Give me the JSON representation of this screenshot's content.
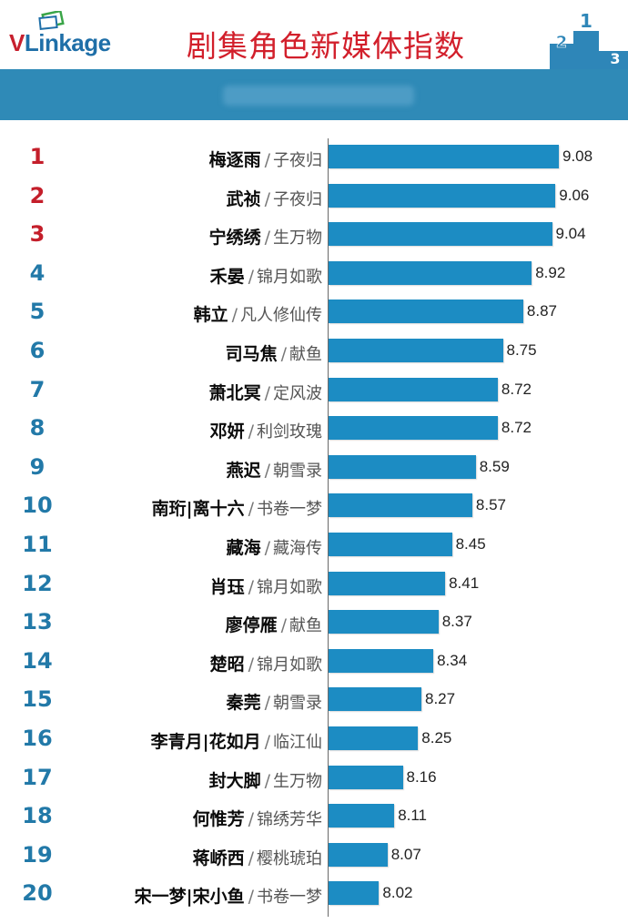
{
  "header": {
    "logo_v": "V",
    "logo_rest": "Linkage",
    "title": "剧集角色新媒体指数",
    "podium_labels": [
      "2",
      "1",
      "3"
    ]
  },
  "colors": {
    "title": "#d21f2b",
    "band": "#2f8ab7",
    "bar": "#1c8cc3",
    "rank_top": "#c41e2a",
    "rank_rest": "#2279a8"
  },
  "chart_data": {
    "type": "bar",
    "orientation": "horizontal",
    "title": "剧集角色新媒体指数",
    "grid": false,
    "items": [
      {
        "rank": "1",
        "character": "梅逐雨",
        "show": "子夜归",
        "value": 9.08
      },
      {
        "rank": "2",
        "character": "武祯",
        "show": "子夜归",
        "value": 9.06
      },
      {
        "rank": "3",
        "character": "宁绣绣",
        "show": "生万物",
        "value": 9.04
      },
      {
        "rank": "4",
        "character": "禾晏",
        "show": "锦月如歌",
        "value": 8.92
      },
      {
        "rank": "5",
        "character": "韩立",
        "show": "凡人修仙传",
        "value": 8.87
      },
      {
        "rank": "6",
        "character": "司马焦",
        "show": "献鱼",
        "value": 8.75
      },
      {
        "rank": "7",
        "character": "萧北冥",
        "show": "定风波",
        "value": 8.72
      },
      {
        "rank": "8",
        "character": "邓妍",
        "show": "利剑玫瑰",
        "value": 8.72
      },
      {
        "rank": "9",
        "character": "燕迟",
        "show": "朝雪录",
        "value": 8.59
      },
      {
        "rank": "10",
        "character": "南珩|离十六",
        "show": "书卷一梦",
        "value": 8.57
      },
      {
        "rank": "11",
        "character": "藏海",
        "show": "藏海传",
        "value": 8.45
      },
      {
        "rank": "12",
        "character": "肖珏",
        "show": "锦月如歌",
        "value": 8.41
      },
      {
        "rank": "13",
        "character": "廖停雁",
        "show": "献鱼",
        "value": 8.37
      },
      {
        "rank": "14",
        "character": "楚昭",
        "show": "锦月如歌",
        "value": 8.34
      },
      {
        "rank": "15",
        "character": "秦莞",
        "show": "朝雪录",
        "value": 8.27
      },
      {
        "rank": "16",
        "character": "李青月|花如月",
        "show": "临江仙",
        "value": 8.25
      },
      {
        "rank": "17",
        "character": "封大脚",
        "show": "生万物",
        "value": 8.16
      },
      {
        "rank": "18",
        "character": "何惟芳",
        "show": "锦绣芳华",
        "value": 8.11
      },
      {
        "rank": "19",
        "character": "蒋峤西",
        "show": "樱桃琥珀",
        "value": 8.07
      },
      {
        "rank": "20",
        "character": "宋一梦|宋小鱼",
        "show": "书卷一梦",
        "value": 8.02
      }
    ]
  }
}
